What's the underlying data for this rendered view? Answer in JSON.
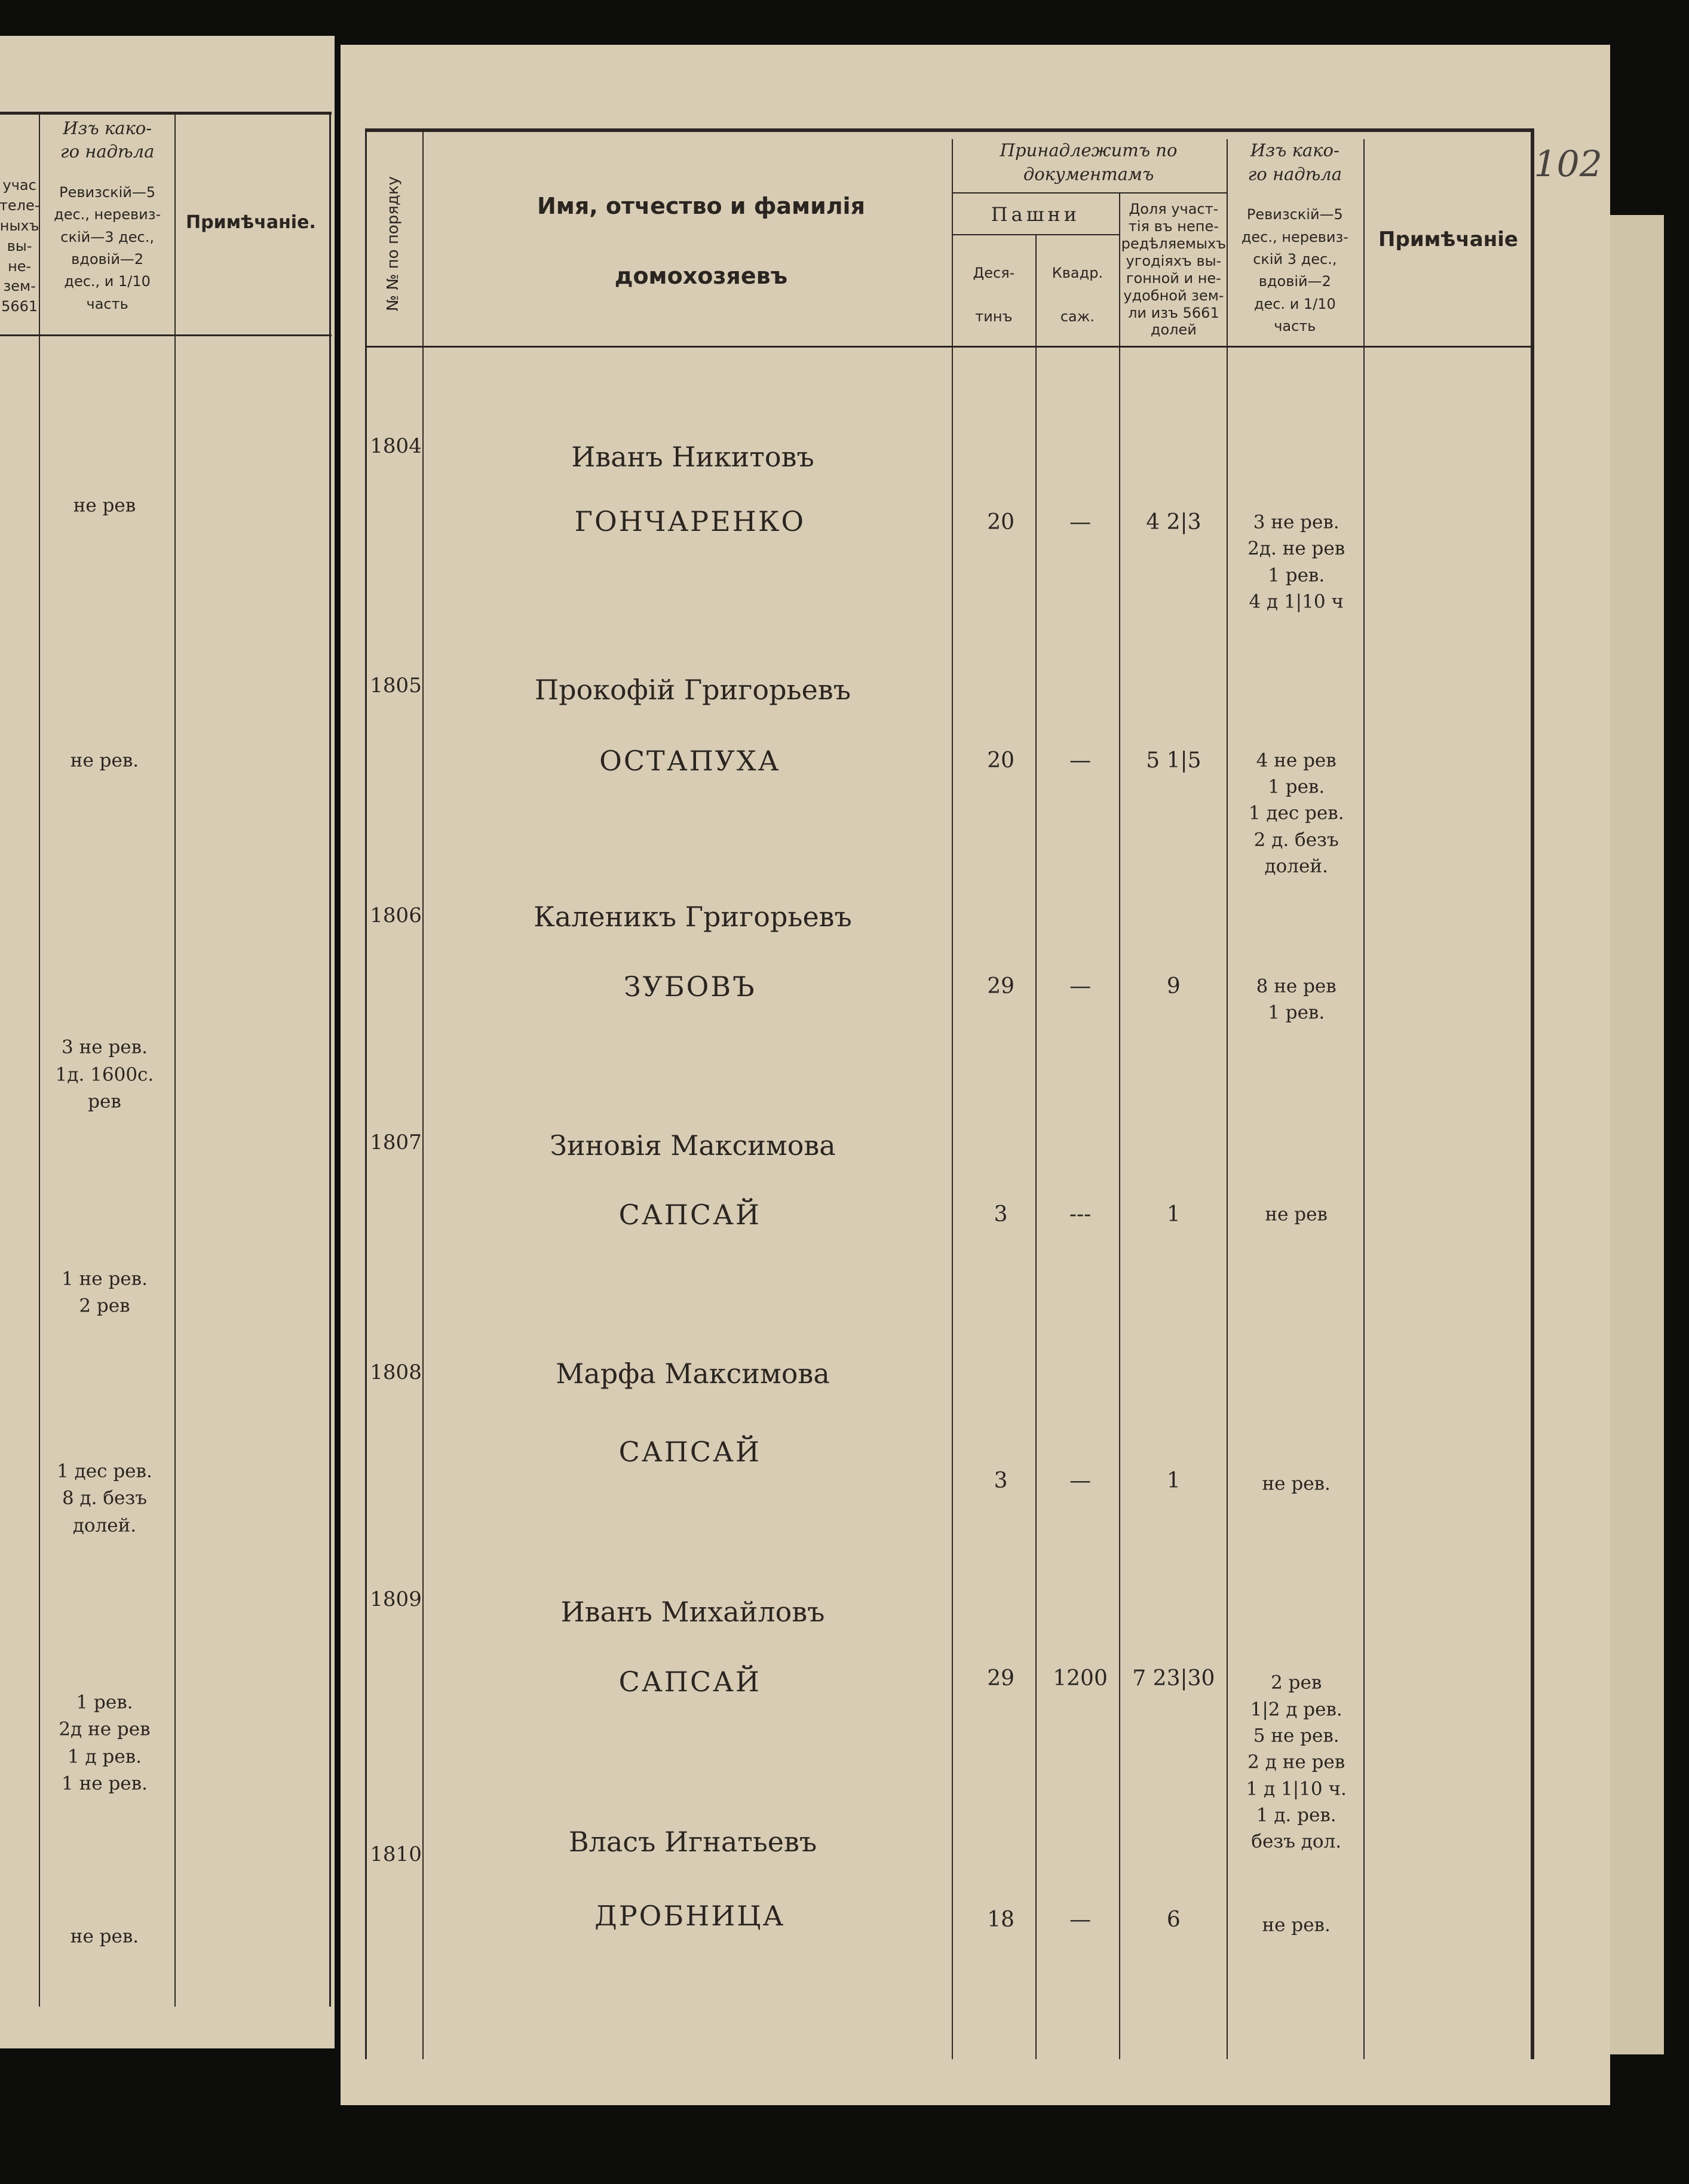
{
  "left_page": {
    "header": {
      "partial_column": [
        "учас",
        "теле-",
        "ныхъ",
        "вы-",
        "не-",
        "зем-",
        "5661"
      ],
      "allotment_title": [
        "Изъ како-",
        "го надѣла"
      ],
      "allotment_note": [
        "Ревизскій—5",
        "дес., неревиз-",
        "скій—3 дес.,",
        "вдовій—2",
        "дес., и 1/10",
        "часть"
      ],
      "remarks": "Примѣчаніе."
    },
    "allotments": [
      [
        "не рев"
      ],
      [
        "не рев."
      ],
      [
        "3 не рев.",
        "1д. 1600с.",
        "рев"
      ],
      [
        "1 не рев.",
        "2 рев"
      ],
      [
        "1 дес рев.",
        "8 д. безъ",
        "долей."
      ],
      [
        "1 рев.",
        "2д не рев",
        "1 д рев.",
        "1 не рев."
      ],
      [
        "не рев."
      ]
    ]
  },
  "right_page": {
    "corner_mark": "102",
    "header": {
      "number": "№ № по порядку",
      "name": [
        "Имя, отчество и фамилія",
        "домохозяевъ"
      ],
      "documents": [
        "Принадлежитъ по",
        "документамъ"
      ],
      "arable": "Пашни",
      "desyatin": [
        "Деся-",
        "тинъ"
      ],
      "sazhen": [
        "Квадр.",
        "саж."
      ],
      "share": [
        "Доля участ-",
        "тія въ непе-",
        "редѣляемыхъ",
        "угодіяхъ вы-",
        "гонной и не-",
        "удобной зем-",
        "ли изъ 5661",
        "долей"
      ],
      "allotment_title": [
        "Изъ како-",
        "го надѣла"
      ],
      "allotment_note": [
        "Ревизскій—5",
        "дес., неревиз-",
        "скій 3 дес.,",
        "вдовій—2",
        "дес. и 1/10",
        "часть"
      ],
      "remarks": "Примѣчаніе"
    },
    "rows": [
      {
        "number": "1804",
        "name": "Иванъ Никитовъ",
        "surname": "ГОНЧАРЕНКО",
        "desyatin": "20",
        "sazhen": "—",
        "share": "4 2|3",
        "allotment": [
          "3 не рев.",
          "2д. не рев",
          "1 рев.",
          "4 д 1|10 ч"
        ]
      },
      {
        "number": "1805",
        "name": "Прокофій Григорьевъ",
        "surname": "ОСТАПУХА",
        "desyatin": "20",
        "sazhen": "—",
        "share": "5 1|5",
        "allotment": [
          "4 не рев",
          "1 рев.",
          "1 дес рев.",
          "2 д. безъ",
          "долей."
        ]
      },
      {
        "number": "1806",
        "name": "Каленикъ Григорьевъ",
        "surname": "ЗУБОВЪ",
        "desyatin": "29",
        "sazhen": "—",
        "share": "9",
        "allotment": [
          "8 не рев",
          "1 рев."
        ]
      },
      {
        "number": "1807",
        "name": "Зиновія Максимова",
        "surname": "САПСАЙ",
        "desyatin": "3",
        "sazhen": "---",
        "share": "1",
        "allotment": [
          "не рев"
        ]
      },
      {
        "number": "1808",
        "name": "Марфа Максимова",
        "surname": "САПСАЙ",
        "desyatin": "3",
        "sazhen": "—",
        "share": "1",
        "allotment": [
          "не рев."
        ]
      },
      {
        "number": "1809",
        "name": "Иванъ Михайловъ",
        "surname": "САПСАЙ",
        "desyatin": "29",
        "sazhen": "1200",
        "share": "7 23|30",
        "allotment": [
          "2 рев",
          "1|2 д рев.",
          "5 не рев.",
          "2 д не рев",
          "1 д 1|10 ч.",
          "1 д. рев.",
          "безъ дол."
        ]
      },
      {
        "number": "1810",
        "name": "Власъ Игнатьевъ",
        "surname": "ДРОБНИЦА",
        "desyatin": "18",
        "sazhen": "—",
        "share": "6",
        "allotment": [
          "не рев."
        ]
      }
    ]
  }
}
